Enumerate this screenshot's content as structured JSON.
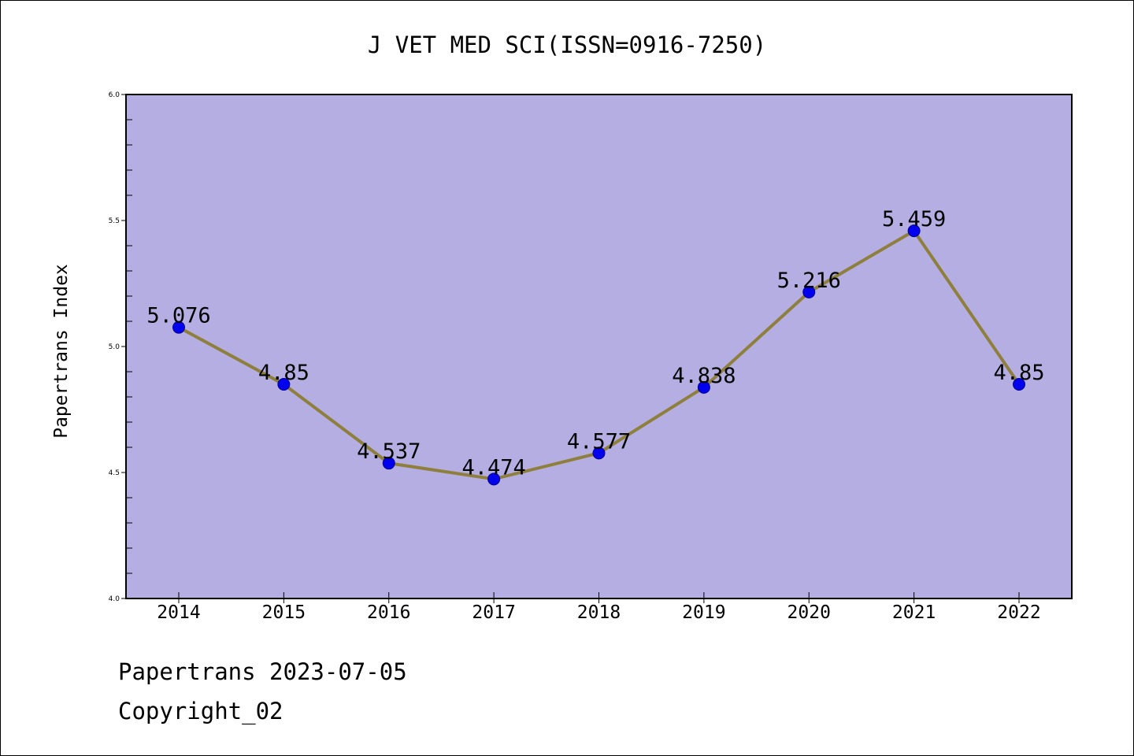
{
  "chart_data": {
    "type": "line",
    "title": "J VET MED SCI(ISSN=0916-7250)",
    "xlabel": "",
    "ylabel": "Papertrans Index",
    "categories": [
      "2014",
      "2015",
      "2016",
      "2017",
      "2018",
      "2019",
      "2020",
      "2021",
      "2022"
    ],
    "series": [
      {
        "values": [
          5.076,
          4.85,
          4.537,
          4.474,
          4.577,
          4.838,
          5.216,
          5.459,
          4.85
        ],
        "data_labels": [
          "5.076",
          "4.85",
          "4.537",
          "4.474",
          "4.577",
          "4.838",
          "5.216",
          "5.459",
          "4.85"
        ]
      }
    ],
    "ylim": [
      4.0,
      6.0
    ],
    "yticks": [
      "4.0",
      "4.5",
      "5.0",
      "5.5",
      "6.0"
    ],
    "grid": false,
    "colors": {
      "plot_background": "#b4aee2",
      "line": "#8f7f3c",
      "marker": "#0000ee",
      "axis": "#000000"
    }
  },
  "footer": {
    "line1": "Papertrans 2023-07-05",
    "line2": "Copyright_02"
  }
}
